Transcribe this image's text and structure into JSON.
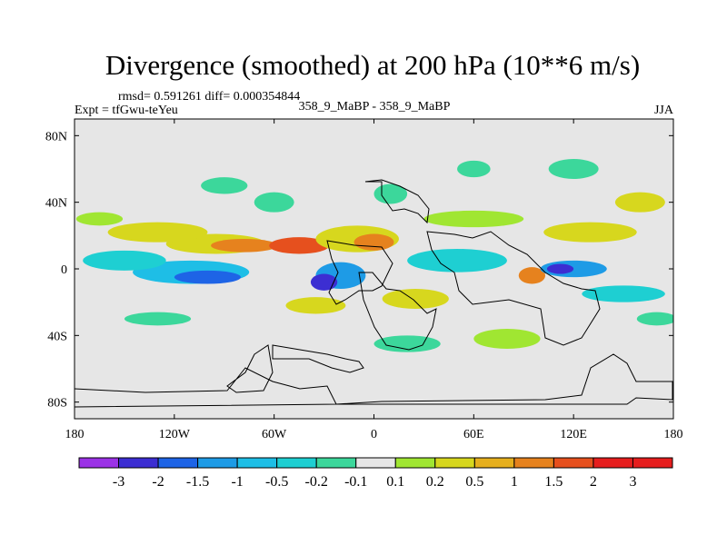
{
  "chart_data": {
    "type": "heatmap",
    "title": "Divergence (smoothed) at 200 hPa (10**6 m/s)",
    "stats": "rmsd= 0.591261 diff= 0.000354844",
    "expt": "Expt = tfGwu-teYeu",
    "comparison": "358_9_MaBP - 358_9_MaBP",
    "season": "JJA",
    "x_ticks": [
      {
        "value": -180,
        "label": "180"
      },
      {
        "value": -120,
        "label": "120W"
      },
      {
        "value": -60,
        "label": "60W"
      },
      {
        "value": 0,
        "label": "0"
      },
      {
        "value": 60,
        "label": "60E"
      },
      {
        "value": 120,
        "label": "120E"
      },
      {
        "value": 180,
        "label": "180"
      }
    ],
    "y_ticks": [
      {
        "value": 80,
        "label": "80N"
      },
      {
        "value": 40,
        "label": "40N"
      },
      {
        "value": 0,
        "label": "0"
      },
      {
        "value": -40,
        "label": "40S"
      },
      {
        "value": -80,
        "label": "80S"
      }
    ],
    "xlim": [
      -180,
      180
    ],
    "ylim": [
      -90,
      90
    ],
    "colorbar": {
      "levels": [
        "-3",
        "-2",
        "-1.5",
        "-1",
        "-0.5",
        "-0.2",
        "-0.1",
        "0.1",
        "0.2",
        "0.5",
        "1",
        "1.5",
        "2",
        "3"
      ],
      "colors": [
        "#9b32e6",
        "#3c2ed2",
        "#1e64e6",
        "#1e9be6",
        "#1ebee6",
        "#1ecfd2",
        "#3cd79b",
        "#e6e6e6",
        "#a0e632",
        "#d7d71e",
        "#e6af1e",
        "#e6821e",
        "#e6501e",
        "#e61e1e",
        "#e61e1e"
      ]
    },
    "blobs": [
      {
        "lon": -95,
        "lat": 15,
        "rx": 30,
        "ry": 6,
        "level": 9
      },
      {
        "lon": -78,
        "lat": 14,
        "rx": 20,
        "ry": 4,
        "level": 11
      },
      {
        "lon": -45,
        "lat": 14,
        "rx": 18,
        "ry": 5,
        "level": 12
      },
      {
        "lon": -10,
        "lat": 18,
        "rx": 25,
        "ry": 8,
        "level": 9
      },
      {
        "lon": 0,
        "lat": 16,
        "rx": 12,
        "ry": 5,
        "level": 11
      },
      {
        "lon": -130,
        "lat": 22,
        "rx": 30,
        "ry": 6,
        "level": 9
      },
      {
        "lon": -165,
        "lat": 30,
        "rx": 14,
        "ry": 4,
        "level": 8
      },
      {
        "lon": 130,
        "lat": 22,
        "rx": 28,
        "ry": 6,
        "level": 9
      },
      {
        "lon": 60,
        "lat": 30,
        "rx": 30,
        "ry": 5,
        "level": 8
      },
      {
        "lon": 25,
        "lat": -18,
        "rx": 20,
        "ry": 6,
        "level": 9
      },
      {
        "lon": -35,
        "lat": -22,
        "rx": 18,
        "ry": 5,
        "level": 9
      },
      {
        "lon": 95,
        "lat": -4,
        "rx": 8,
        "ry": 5,
        "level": 11
      },
      {
        "lon": 80,
        "lat": -42,
        "rx": 20,
        "ry": 6,
        "level": 8
      },
      {
        "lon": 160,
        "lat": 40,
        "rx": 15,
        "ry": 6,
        "level": 9
      },
      {
        "lon": -110,
        "lat": -2,
        "rx": 35,
        "ry": 7,
        "level": 4
      },
      {
        "lon": -100,
        "lat": -5,
        "rx": 20,
        "ry": 4,
        "level": 2
      },
      {
        "lon": -20,
        "lat": -4,
        "rx": 15,
        "ry": 8,
        "level": 3
      },
      {
        "lon": -30,
        "lat": -8,
        "rx": 8,
        "ry": 5,
        "level": 1
      },
      {
        "lon": 120,
        "lat": 0,
        "rx": 20,
        "ry": 5,
        "level": 3
      },
      {
        "lon": 112,
        "lat": 0,
        "rx": 8,
        "ry": 3,
        "level": 1
      },
      {
        "lon": 50,
        "lat": 5,
        "rx": 30,
        "ry": 7,
        "level": 5
      },
      {
        "lon": -150,
        "lat": 5,
        "rx": 25,
        "ry": 6,
        "level": 5
      },
      {
        "lon": 150,
        "lat": -15,
        "rx": 25,
        "ry": 5,
        "level": 5
      },
      {
        "lon": 120,
        "lat": 60,
        "rx": 15,
        "ry": 6,
        "level": 6
      },
      {
        "lon": 60,
        "lat": 60,
        "rx": 10,
        "ry": 5,
        "level": 6
      },
      {
        "lon": 10,
        "lat": 45,
        "rx": 10,
        "ry": 6,
        "level": 6
      },
      {
        "lon": -60,
        "lat": 40,
        "rx": 12,
        "ry": 6,
        "level": 6
      },
      {
        "lon": -90,
        "lat": 50,
        "rx": 14,
        "ry": 5,
        "level": 6
      },
      {
        "lon": -130,
        "lat": -30,
        "rx": 20,
        "ry": 4,
        "level": 6
      },
      {
        "lon": -60,
        "lat": -40,
        "rx": 25,
        "ry": 5,
        "level": 7
      },
      {
        "lon": 20,
        "lat": -45,
        "rx": 20,
        "ry": 5,
        "level": 6
      },
      {
        "lon": 170,
        "lat": -30,
        "rx": 12,
        "ry": 4,
        "level": 6
      }
    ]
  }
}
